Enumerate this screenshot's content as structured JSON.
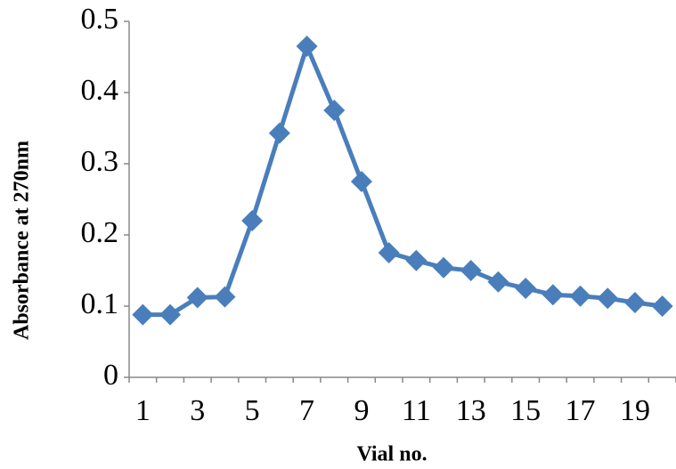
{
  "chart_data": {
    "type": "line",
    "x_label": "Vial no.",
    "y_label": "Absorbance at 270nm",
    "categories": [
      "1",
      null,
      "3",
      null,
      "5",
      null,
      "7",
      null,
      "9",
      null,
      "11",
      null,
      "13",
      null,
      "15",
      null,
      "17",
      null,
      "19",
      null
    ],
    "values": [
      0.088,
      0.088,
      0.112,
      0.113,
      0.22,
      0.343,
      0.465,
      0.375,
      0.275,
      0.175,
      0.164,
      0.154,
      0.15,
      0.134,
      0.125,
      0.116,
      0.114,
      0.111,
      0.105,
      0.1
    ],
    "color": "#4a7ebb",
    "ylim": [
      0,
      0.5
    ],
    "yticks": [
      0,
      0.1,
      0.2,
      0.3,
      0.4,
      0.5
    ],
    "grid": false
  }
}
